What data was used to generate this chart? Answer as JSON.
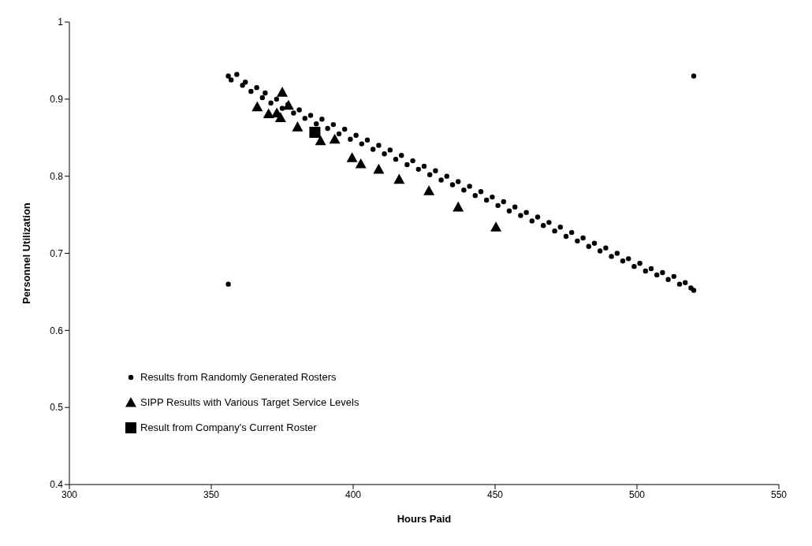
{
  "chart_data": {
    "type": "scatter",
    "xlabel": "Hours Paid",
    "ylabel": "Personnel Utilization",
    "xlim": [
      300,
      550
    ],
    "ylim": [
      0.4,
      1
    ],
    "xticks": [
      300,
      350,
      400,
      450,
      500,
      550
    ],
    "yticks": [
      0.4,
      0.5,
      0.6,
      0.7,
      0.8,
      0.9,
      1
    ],
    "grid": false,
    "legend": "bottom left",
    "series": [
      {
        "name": "Results from Randomly Generated Rosters",
        "color": "#000000",
        "marker": "circle",
        "x": [
          356,
          357,
          359,
          361,
          362,
          364,
          366,
          368,
          369,
          371,
          373,
          375,
          377,
          379,
          381,
          383,
          385,
          387,
          389,
          391,
          393,
          395,
          397,
          399,
          401,
          403,
          405,
          407,
          409,
          411,
          413,
          415,
          417,
          419,
          421,
          423,
          425,
          427,
          429,
          431,
          433,
          435,
          437,
          439,
          441,
          443,
          445,
          447,
          449,
          451,
          453,
          455,
          457,
          459,
          461,
          463,
          465,
          467,
          469,
          471,
          473,
          475,
          477,
          479,
          481,
          483,
          485,
          487,
          489,
          491,
          493,
          495,
          497,
          499,
          501,
          503,
          505,
          507,
          509,
          511,
          513,
          515,
          517,
          519,
          520,
          356,
          520
        ],
        "values": [
          0.93,
          0.925,
          0.932,
          0.918,
          0.922,
          0.91,
          0.915,
          0.902,
          0.908,
          0.895,
          0.9,
          0.888,
          0.893,
          0.882,
          0.886,
          0.875,
          0.879,
          0.868,
          0.874,
          0.862,
          0.867,
          0.855,
          0.861,
          0.848,
          0.853,
          0.842,
          0.847,
          0.835,
          0.84,
          0.829,
          0.834,
          0.822,
          0.827,
          0.815,
          0.82,
          0.809,
          0.813,
          0.802,
          0.807,
          0.795,
          0.8,
          0.789,
          0.793,
          0.782,
          0.787,
          0.775,
          0.78,
          0.769,
          0.773,
          0.762,
          0.767,
          0.755,
          0.76,
          0.749,
          0.753,
          0.742,
          0.747,
          0.736,
          0.74,
          0.729,
          0.734,
          0.722,
          0.727,
          0.716,
          0.72,
          0.709,
          0.713,
          0.703,
          0.707,
          0.696,
          0.7,
          0.69,
          0.693,
          0.683,
          0.687,
          0.677,
          0.68,
          0.672,
          0.675,
          0.666,
          0.67,
          0.66,
          0.662,
          0.655,
          0.652,
          0.66,
          0.93
        ]
      },
      {
        "name": "SIPP Results with Various Target Service Levels",
        "color": "#000000",
        "marker": "triangle",
        "x": [
          366.2,
          370.2,
          373.1,
          374.4,
          375,
          377.2,
          380.4,
          388.5,
          393.5,
          399.6,
          402.7,
          409,
          416.2,
          426.7,
          437,
          450.3
        ],
        "values": [
          0.89,
          0.881,
          0.882,
          0.876,
          0.909,
          0.892,
          0.864,
          0.846,
          0.848,
          0.824,
          0.816,
          0.809,
          0.796,
          0.781,
          0.76,
          0.734
        ]
      },
      {
        "name": "Result from Company's Current Roster",
        "color": "#000000",
        "marker": "square",
        "x": [
          386.5
        ],
        "values": [
          0.857
        ]
      }
    ]
  }
}
